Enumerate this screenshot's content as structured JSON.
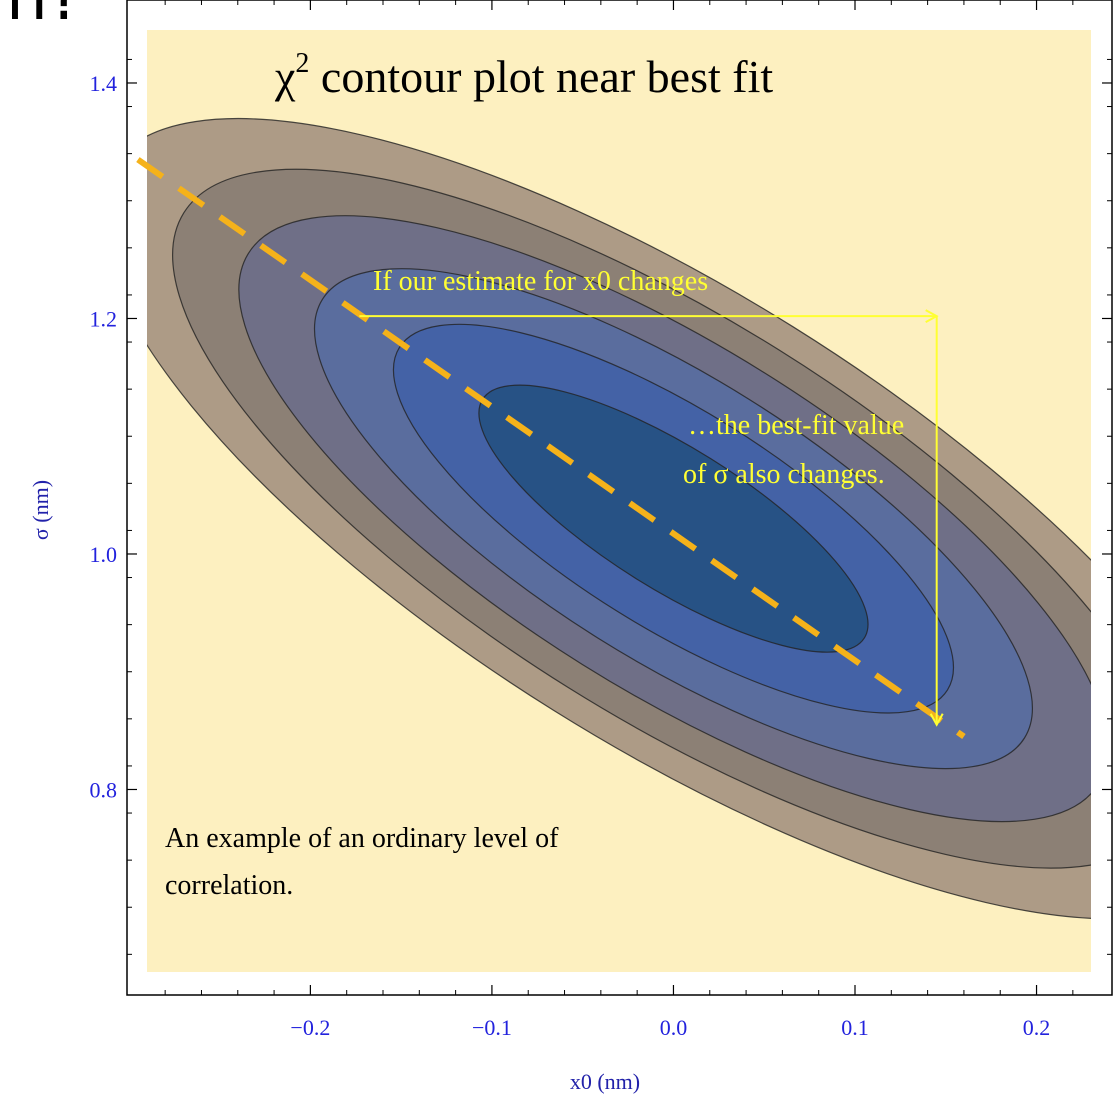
{
  "page": {
    "slide_fragment": "n?"
  },
  "chart_data": {
    "type": "contour",
    "title_symbol": "χ",
    "title_superscript": "2",
    "title_rest": " contour plot near best fit",
    "xlabel": "x0 (nm)",
    "ylabel": "σ (nm)",
    "xlim": [
      -0.29,
      0.23
    ],
    "ylim": [
      0.645,
      1.445
    ],
    "x_ticks": [
      -0.2,
      -0.1,
      0.0,
      0.1,
      0.2
    ],
    "x_tick_labels": [
      "−0.2",
      "−0.1",
      "0.0",
      "0.1",
      "0.2"
    ],
    "y_ticks": [
      0.8,
      1.0,
      1.2,
      1.4
    ],
    "y_tick_labels": [
      "0.8",
      "1.0",
      "1.2",
      "1.4"
    ],
    "best_fit": {
      "x0": 0.0,
      "sigma": 1.03
    },
    "contours": [
      {
        "level": 5,
        "semi_major": 0.365,
        "semi_minor": 0.192,
        "angle_deg": 32,
        "color": "#ad9b86"
      },
      {
        "level": 4,
        "semi_major": 0.318,
        "semi_minor": 0.169,
        "angle_deg": 32,
        "color": "#8c8075"
      },
      {
        "level": 3,
        "semi_major": 0.276,
        "semi_minor": 0.146,
        "angle_deg": 32,
        "color": "#6f6f87"
      },
      {
        "level": 2,
        "semi_major": 0.228,
        "semi_minor": 0.12,
        "angle_deg": 32,
        "color": "#5a6d9e"
      },
      {
        "level": 1,
        "semi_major": 0.178,
        "semi_minor": 0.092,
        "angle_deg": 32,
        "color": "#4462a6"
      },
      {
        "level": 0,
        "semi_major": 0.124,
        "semi_minor": 0.06,
        "angle_deg": 32,
        "color": "#275285"
      }
    ],
    "background_color": "#fdf0c0",
    "correlation_line": {
      "x": [
        -0.295,
        0.16
      ],
      "y": [
        1.335,
        0.845
      ],
      "color": "#f5b21a",
      "style": "dashed"
    },
    "arrows": [
      {
        "from": [
          -0.173,
          1.202
        ],
        "to": [
          0.145,
          1.202
        ],
        "color": "#ffff33"
      },
      {
        "from": [
          0.145,
          1.202
        ],
        "to": [
          0.145,
          0.855
        ],
        "color": "#ffff33"
      }
    ],
    "annotations": [
      {
        "id": "x0-change",
        "text": "If our estimate for x0 changes",
        "x": -0.175,
        "y": 1.225
      },
      {
        "id": "sigma-change-1",
        "text": "…the best-fit value",
        "x": 0.07,
        "y": 1.1
      },
      {
        "id": "sigma-change-2",
        "text": "of σ also changes.",
        "x": 0.07,
        "y": 1.062
      }
    ],
    "note_lines": [
      "An example of an ordinary level of",
      "correlation."
    ]
  }
}
